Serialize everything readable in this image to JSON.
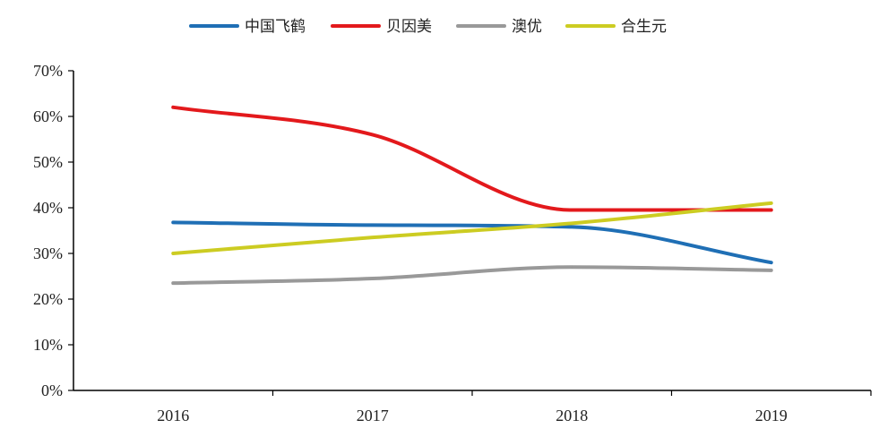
{
  "chart_data": {
    "type": "line",
    "title": "",
    "xlabel": "",
    "ylabel": "",
    "categories": [
      "2016",
      "2017",
      "2018",
      "2019"
    ],
    "ylim": [
      0,
      70
    ],
    "y_ticks": [
      "0%",
      "10%",
      "20%",
      "30%",
      "40%",
      "50%",
      "60%",
      "70%"
    ],
    "grid": false,
    "legend_position": "top-center",
    "series": [
      {
        "name": "中国飞鹤",
        "values": [
          36.8,
          36.2,
          35.8,
          28.0
        ],
        "color": "#1f6fb5"
      },
      {
        "name": "贝因美",
        "values": [
          62.0,
          56.0,
          39.5,
          39.5
        ],
        "color": "#e3191c"
      },
      {
        "name": "澳优",
        "values": [
          23.5,
          24.5,
          27.0,
          26.3
        ],
        "color": "#999999"
      },
      {
        "name": "合生元",
        "values": [
          30.0,
          33.5,
          36.6,
          41.0
        ],
        "color": "#cccc22"
      }
    ]
  }
}
